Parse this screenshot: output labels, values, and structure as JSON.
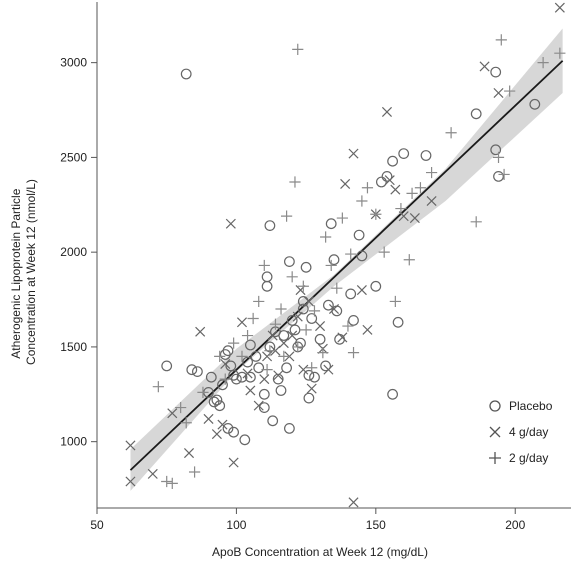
{
  "chart_data": {
    "type": "scatter",
    "xlabel": "ApoB Concentration at Week 12 (mg/dL)",
    "ylabel": [
      "Atherogenic Lipoprotein Particle",
      "Concentration at Week 12 (nmol/L)"
    ],
    "xlim": [
      50,
      220
    ],
    "ylim": [
      650,
      3320
    ],
    "xticks": [
      "50",
      "100",
      "150",
      "200"
    ],
    "xtick_values": [
      50,
      100,
      150,
      200
    ],
    "yticks": [
      "1000",
      "1500",
      "2000",
      "2500",
      "3000"
    ],
    "ytick_values": [
      1000,
      1500,
      2000,
      2500,
      3000
    ],
    "grid": false,
    "legend_position": "bottom-right",
    "colors": {
      "points": "#666666",
      "fit_line": "#1a1a1a",
      "band": "#d0d0d0",
      "axis": "#555555"
    },
    "fit": {
      "x": [
        62,
        217
      ],
      "y": [
        850,
        3010
      ]
    },
    "band": {
      "x": [
        62,
        100,
        135,
        175,
        217
      ],
      "upper": [
        960,
        1490,
        1880,
        2440,
        3180
      ],
      "lower": [
        740,
        1370,
        1820,
        2270,
        2840
      ]
    },
    "series": [
      {
        "name": "Placebo",
        "marker": "circle",
        "points": [
          [
            82,
            2940
          ],
          [
            75,
            1400
          ],
          [
            84,
            1380
          ],
          [
            86,
            1370
          ],
          [
            90,
            1260
          ],
          [
            91,
            1340
          ],
          [
            92,
            1210
          ],
          [
            93,
            1220
          ],
          [
            94,
            1190
          ],
          [
            95,
            1300
          ],
          [
            96,
            1460
          ],
          [
            97,
            1480
          ],
          [
            97,
            1070
          ],
          [
            98,
            1400
          ],
          [
            99,
            1350
          ],
          [
            99,
            1050
          ],
          [
            100,
            1330
          ],
          [
            102,
            1340
          ],
          [
            103,
            1010
          ],
          [
            104,
            1420
          ],
          [
            105,
            1510
          ],
          [
            105,
            1340
          ],
          [
            107,
            1450
          ],
          [
            108,
            1390
          ],
          [
            110,
            1250
          ],
          [
            110,
            1180
          ],
          [
            111,
            1870
          ],
          [
            111,
            1820
          ],
          [
            112,
            2140
          ],
          [
            112,
            1500
          ],
          [
            113,
            1110
          ],
          [
            114,
            1580
          ],
          [
            115,
            1330
          ],
          [
            116,
            1270
          ],
          [
            117,
            1560
          ],
          [
            118,
            1390
          ],
          [
            119,
            1950
          ],
          [
            119,
            1070
          ],
          [
            120,
            1640
          ],
          [
            121,
            1590
          ],
          [
            122,
            1500
          ],
          [
            123,
            1520
          ],
          [
            124,
            1740
          ],
          [
            124,
            1700
          ],
          [
            125,
            1920
          ],
          [
            126,
            1350
          ],
          [
            126,
            1230
          ],
          [
            127,
            1650
          ],
          [
            128,
            1340
          ],
          [
            130,
            1540
          ],
          [
            132,
            1400
          ],
          [
            133,
            1720
          ],
          [
            134,
            2150
          ],
          [
            135,
            1960
          ],
          [
            136,
            1690
          ],
          [
            137,
            1540
          ],
          [
            141,
            1780
          ],
          [
            142,
            1640
          ],
          [
            144,
            2090
          ],
          [
            145,
            1980
          ],
          [
            150,
            1820
          ],
          [
            152,
            2370
          ],
          [
            154,
            2400
          ],
          [
            156,
            1250
          ],
          [
            156,
            2480
          ],
          [
            158,
            1630
          ],
          [
            160,
            2520
          ],
          [
            168,
            2510
          ],
          [
            186,
            2730
          ],
          [
            193,
            2950
          ],
          [
            193,
            2540
          ],
          [
            194,
            2400
          ],
          [
            207,
            2780
          ]
        ]
      },
      {
        "name": "4 g/day",
        "marker": "x",
        "points": [
          [
            62,
            980
          ],
          [
            62,
            790
          ],
          [
            70,
            830
          ],
          [
            77,
            1150
          ],
          [
            83,
            940
          ],
          [
            87,
            1580
          ],
          [
            90,
            1120
          ],
          [
            93,
            1040
          ],
          [
            95,
            1090
          ],
          [
            96,
            1410
          ],
          [
            98,
            2150
          ],
          [
            99,
            890
          ],
          [
            102,
            1630
          ],
          [
            104,
            1360
          ],
          [
            105,
            1270
          ],
          [
            108,
            1190
          ],
          [
            110,
            1330
          ],
          [
            111,
            1450
          ],
          [
            113,
            1560
          ],
          [
            114,
            1480
          ],
          [
            115,
            1350
          ],
          [
            117,
            1520
          ],
          [
            119,
            1450
          ],
          [
            120,
            1560
          ],
          [
            122,
            1660
          ],
          [
            123,
            1800
          ],
          [
            124,
            1380
          ],
          [
            126,
            1740
          ],
          [
            127,
            1280
          ],
          [
            130,
            1610
          ],
          [
            131,
            1490
          ],
          [
            133,
            1380
          ],
          [
            135,
            1700
          ],
          [
            138,
            1550
          ],
          [
            139,
            2360
          ],
          [
            142,
            2520
          ],
          [
            142,
            680
          ],
          [
            145,
            1800
          ],
          [
            147,
            1590
          ],
          [
            150,
            2200
          ],
          [
            154,
            2740
          ],
          [
            155,
            2380
          ],
          [
            157,
            2330
          ],
          [
            160,
            2190
          ],
          [
            164,
            2180
          ],
          [
            170,
            2270
          ],
          [
            189,
            2980
          ],
          [
            194,
            2840
          ],
          [
            216,
            3290
          ]
        ]
      },
      {
        "name": "2 g/day",
        "marker": "plus",
        "points": [
          [
            72,
            1290
          ],
          [
            75,
            790
          ],
          [
            77,
            780
          ],
          [
            80,
            1180
          ],
          [
            82,
            1100
          ],
          [
            85,
            840
          ],
          [
            88,
            1260
          ],
          [
            94,
            1450
          ],
          [
            96,
            1330
          ],
          [
            99,
            1520
          ],
          [
            102,
            1450
          ],
          [
            104,
            1560
          ],
          [
            106,
            1650
          ],
          [
            108,
            1740
          ],
          [
            110,
            1930
          ],
          [
            111,
            1380
          ],
          [
            112,
            1480
          ],
          [
            114,
            1620
          ],
          [
            116,
            1700
          ],
          [
            117,
            1450
          ],
          [
            118,
            2190
          ],
          [
            120,
            1870
          ],
          [
            121,
            2370
          ],
          [
            122,
            1500
          ],
          [
            122,
            3070
          ],
          [
            124,
            1820
          ],
          [
            125,
            1590
          ],
          [
            127,
            1390
          ],
          [
            128,
            1690
          ],
          [
            131,
            1470
          ],
          [
            132,
            2080
          ],
          [
            134,
            1930
          ],
          [
            136,
            1810
          ],
          [
            138,
            2180
          ],
          [
            140,
            1610
          ],
          [
            141,
            1990
          ],
          [
            142,
            1470
          ],
          [
            145,
            2270
          ],
          [
            147,
            2340
          ],
          [
            150,
            2200
          ],
          [
            153,
            2000
          ],
          [
            157,
            1740
          ],
          [
            159,
            2230
          ],
          [
            162,
            1960
          ],
          [
            163,
            2310
          ],
          [
            166,
            2340
          ],
          [
            170,
            2420
          ],
          [
            177,
            2630
          ],
          [
            186,
            2160
          ],
          [
            194,
            2500
          ],
          [
            195,
            3120
          ],
          [
            196,
            2410
          ],
          [
            198,
            2850
          ],
          [
            210,
            3000
          ],
          [
            216,
            3050
          ]
        ]
      }
    ]
  }
}
